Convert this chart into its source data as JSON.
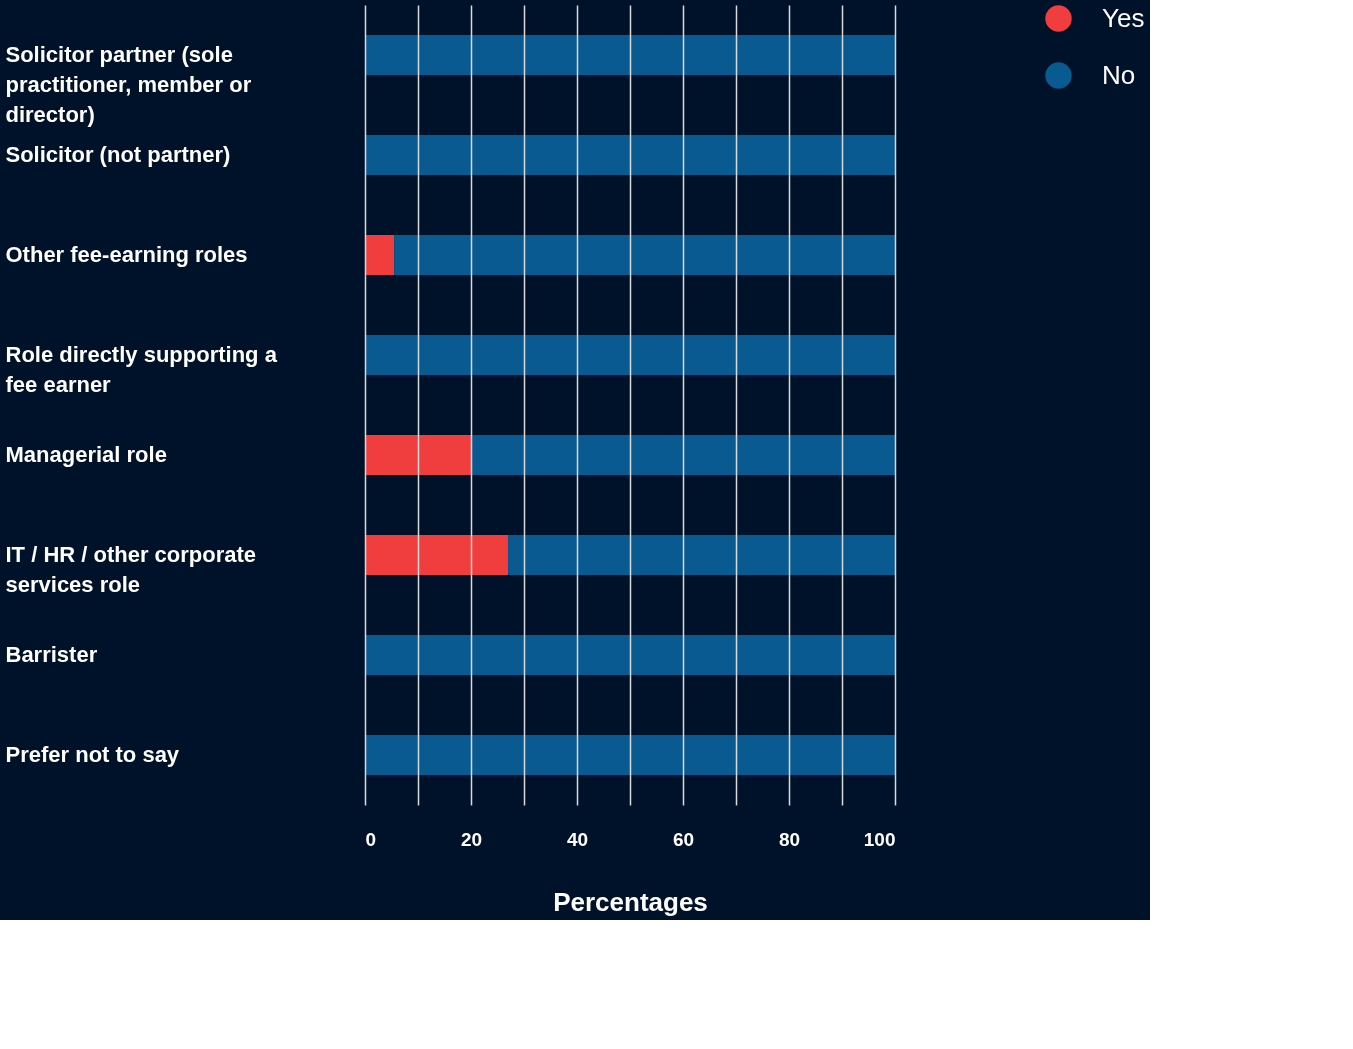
{
  "chart_data": {
    "type": "bar",
    "orientation": "horizontal",
    "stacked": true,
    "xlabel": "Percentages",
    "categories": [
      "Solicitor partner (sole practitioner, member or director)",
      "Solicitor (not partner)",
      "Other fee-earning roles",
      "Role directly supporting a fee earner",
      "Managerial role",
      "IT / HR / other corporate services role",
      "Barrister",
      "Prefer not to say"
    ],
    "series": [
      {
        "name": "Yes",
        "color": "#f03e3e",
        "values": [
          0,
          0,
          5.5,
          0,
          20,
          27,
          0,
          0
        ]
      },
      {
        "name": "No",
        "color": "#0a5a92",
        "values": [
          100,
          100,
          94.5,
          100,
          80,
          73,
          100,
          100
        ]
      }
    ],
    "xlim": [
      0,
      100
    ],
    "xticks": [
      0,
      {
        "value": 10,
        "label": null
      },
      20,
      {
        "value": 30,
        "label": null
      },
      40,
      {
        "value": 50,
        "label": null
      },
      60,
      {
        "value": 70,
        "label": null
      },
      80,
      {
        "value": 90,
        "label": null
      },
      100
    ],
    "grid": "x",
    "legend": "right"
  }
}
